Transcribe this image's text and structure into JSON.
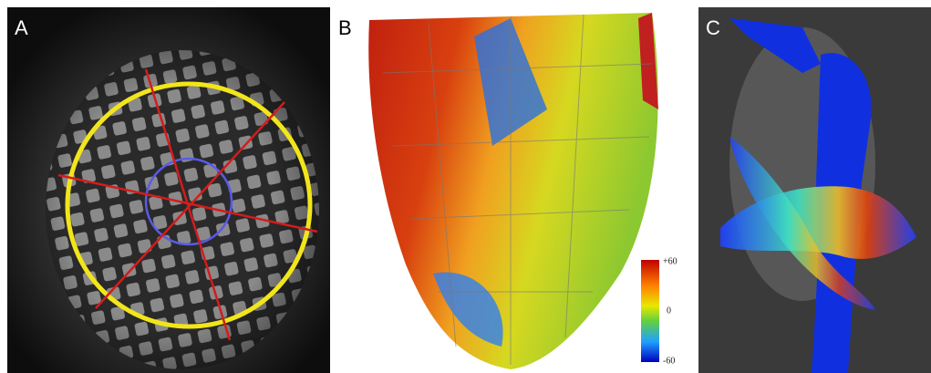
{
  "panels": [
    {
      "label": "A"
    },
    {
      "label": "B",
      "colorbar": {
        "labels": [
          "+60",
          "0",
          "-60"
        ]
      }
    },
    {
      "label": "C"
    }
  ]
}
